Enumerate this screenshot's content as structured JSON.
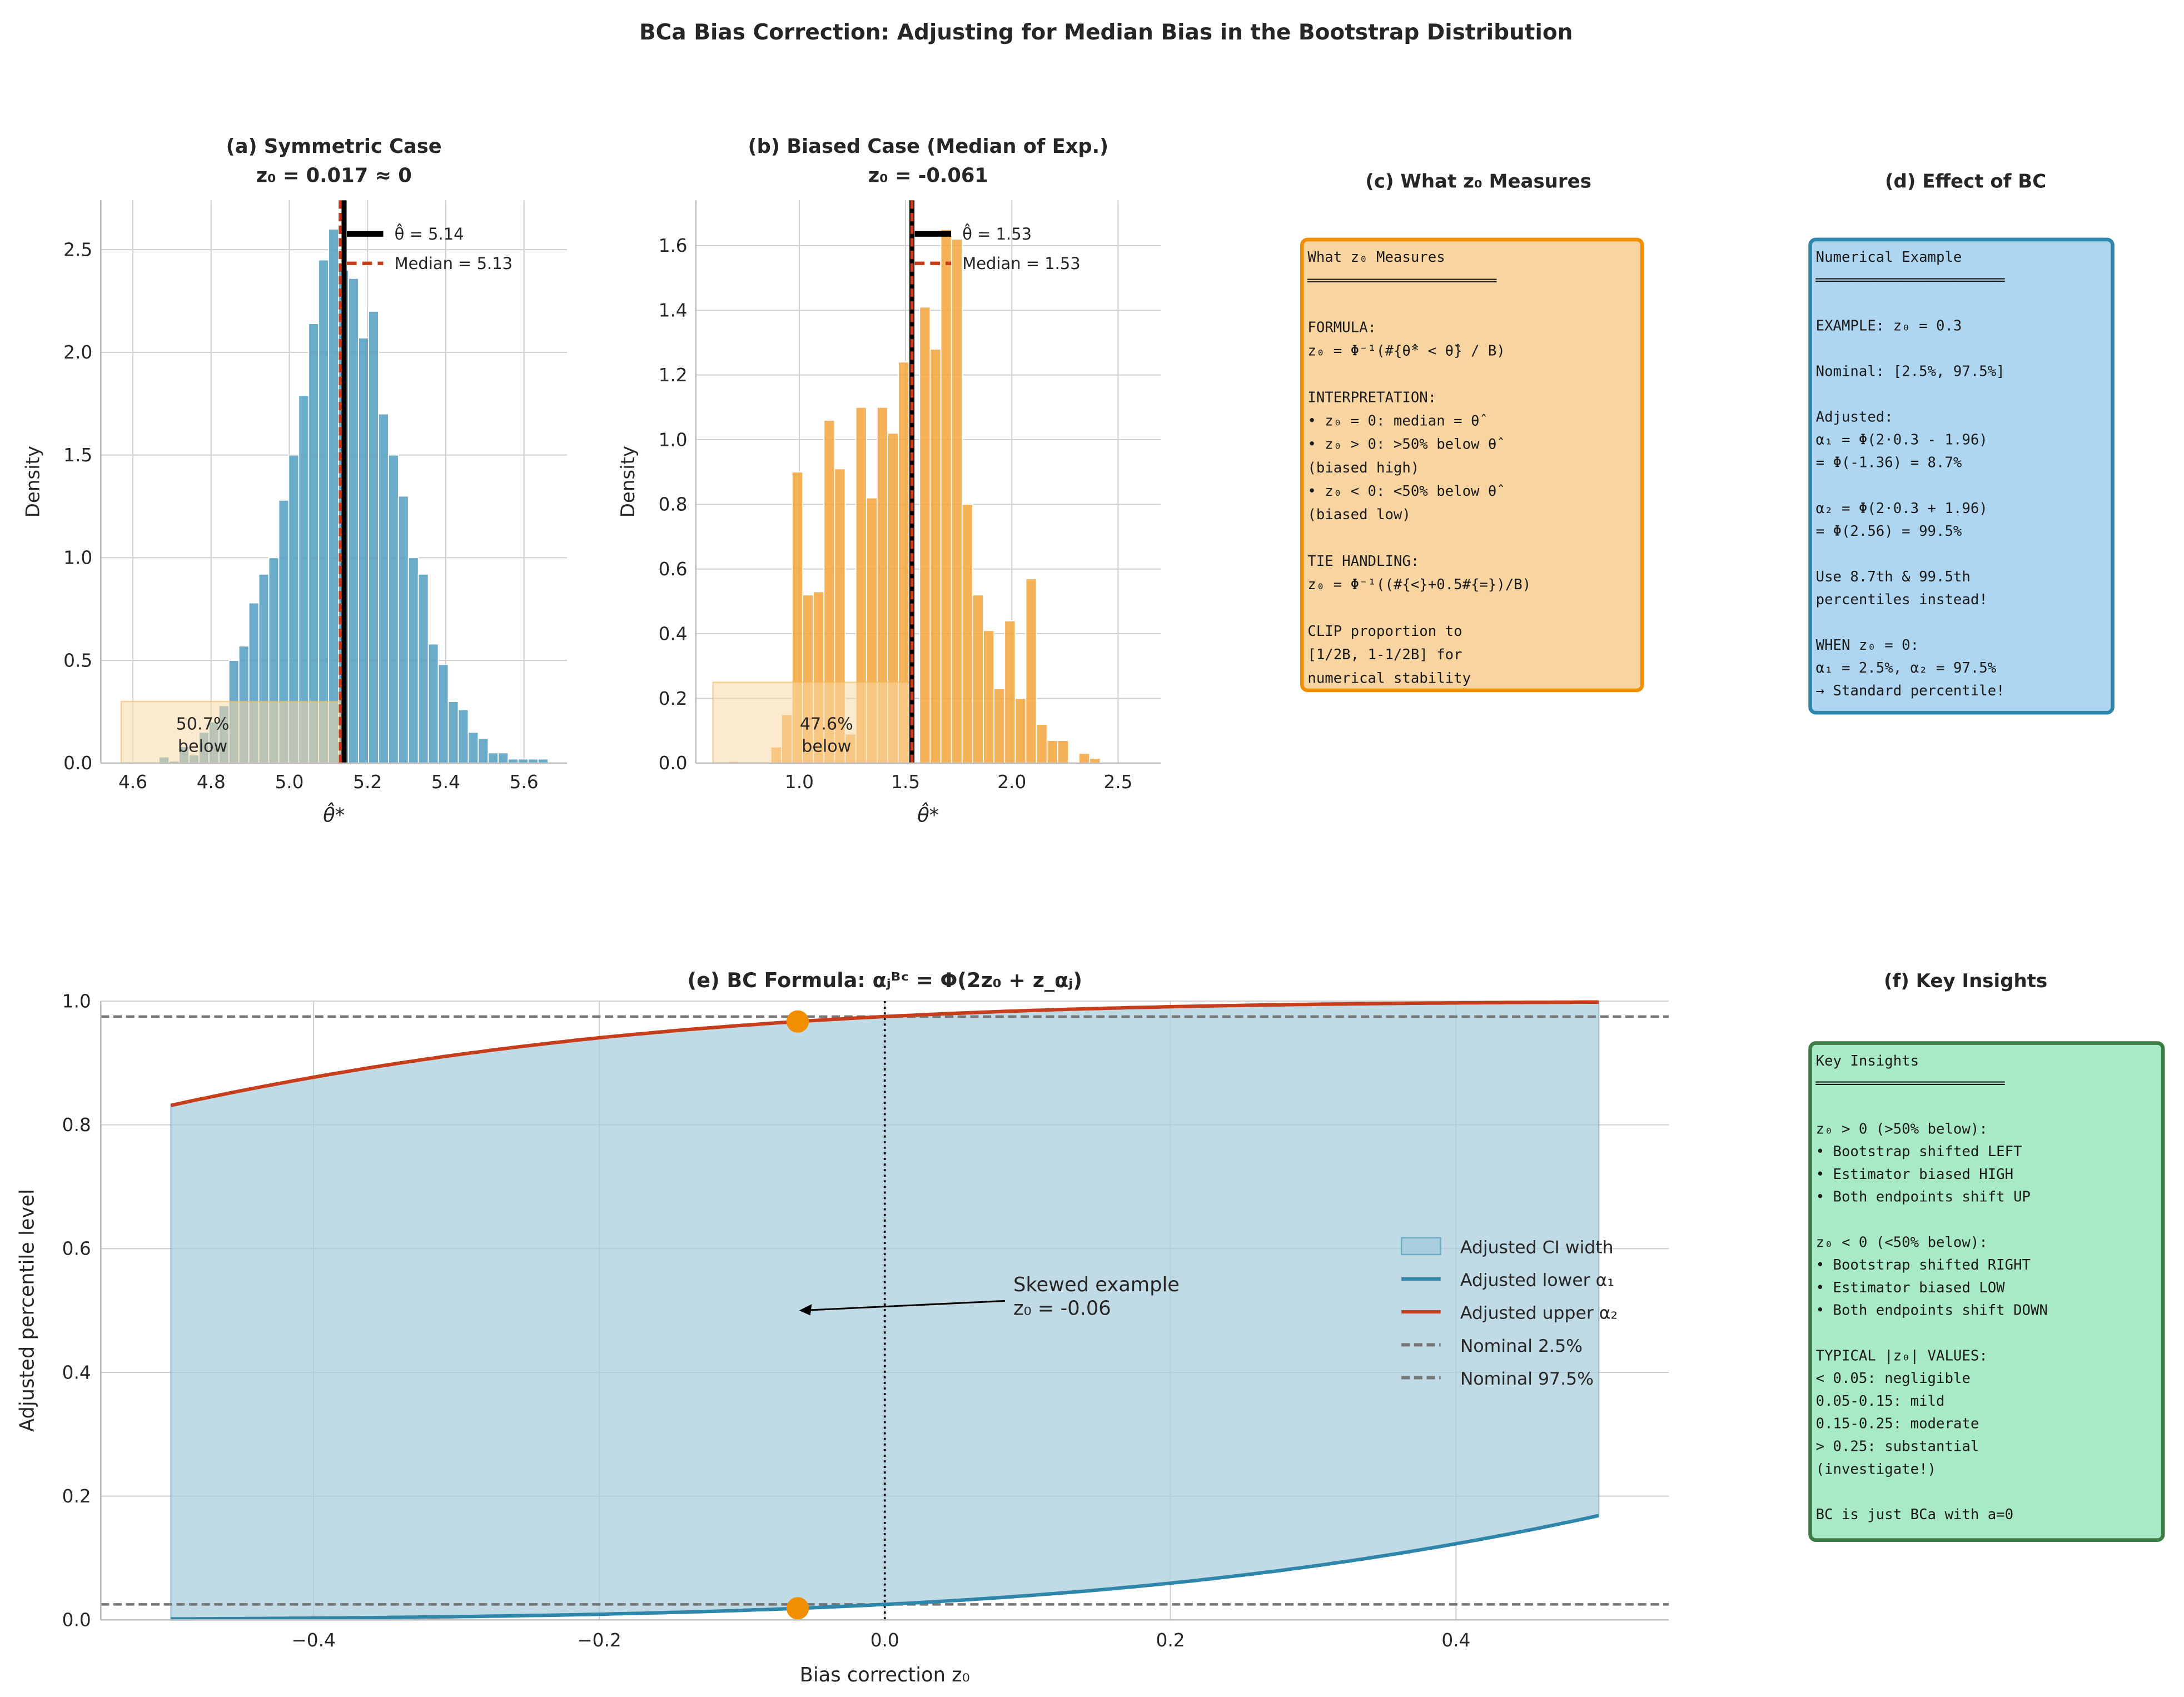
{
  "title": "BCa Bias Correction: Adjusting for Median Bias in the Bootstrap Distribution",
  "colors": {
    "blue": "#2e86ab",
    "hist_blue": "#5ba3c4",
    "orange": "#f18f01",
    "hist_orange": "#f5a53c",
    "red": "#c73e1d",
    "shade": "#f9d9a8",
    "fill_blue": "#a9cddd",
    "gray": "#777777"
  },
  "chart_data": [
    {
      "id": "a",
      "type": "bar",
      "title_line1": "(a) Symmetric Case",
      "title_line2": "z₀ = 0.017  ≈  0",
      "xlabel": "θ̂*",
      "ylabel": "Density",
      "xlim": [
        4.518,
        5.71
      ],
      "ylim": [
        0,
        2.74
      ],
      "xticks": [
        "4.6",
        "4.8",
        "5.0",
        "5.2",
        "5.4",
        "5.6"
      ],
      "yticks": [
        "0.0",
        "0.5",
        "1.0",
        "1.5",
        "2.0",
        "2.5"
      ],
      "bin_start": 4.565,
      "bin_width": 0.0255,
      "values": [
        0.005,
        0.005,
        0,
        0,
        0.03,
        0.01,
        0.08,
        0.04,
        0.15,
        0.2,
        0.28,
        0.5,
        0.57,
        0.78,
        0.92,
        1.0,
        1.28,
        1.5,
        1.79,
        2.14,
        2.45,
        2.6,
        2.4,
        2.36,
        2.07,
        2.2,
        1.7,
        1.5,
        1.3,
        1.0,
        0.92,
        0.58,
        0.48,
        0.3,
        0.26,
        0.15,
        0.12,
        0.05,
        0.05,
        0.02,
        0.02,
        0.02,
        0.02
      ],
      "theta_hat": 5.14,
      "median": 5.13,
      "legend": [
        "θ̂ = 5.14",
        "Median = 5.13"
      ],
      "shade_range": [
        4.57,
        5.13
      ],
      "shade_height": 0.3,
      "annotation": [
        "50.7%",
        "below"
      ]
    },
    {
      "id": "b",
      "type": "bar",
      "title_line1": "(b) Biased Case (Median of Exp.)",
      "title_line2": "z₀ = -0.061",
      "xlabel": "θ̂*",
      "ylabel": "Density",
      "xlim": [
        0.513,
        2.7
      ],
      "ylim": [
        0,
        1.74
      ],
      "xticks": [
        "1.0",
        "1.5",
        "2.0",
        "2.5"
      ],
      "yticks": [
        "0.0",
        "0.2",
        "0.4",
        "0.6",
        "0.8",
        "1.0",
        "1.2",
        "1.4",
        "1.6"
      ],
      "bin_start": 0.666,
      "bin_width": 0.05,
      "values": [
        0.005,
        0,
        0,
        0,
        0.05,
        0.15,
        0.9,
        0.52,
        0.53,
        1.06,
        0.91,
        0.09,
        1.1,
        0.82,
        1.1,
        1.02,
        1.24,
        0,
        1.41,
        1.28,
        1.65,
        1.62,
        0.8,
        0.52,
        0.41,
        0.23,
        0.44,
        0.2,
        0.57,
        0.12,
        0.07,
        0.07,
        0,
        0.03,
        0.015
      ],
      "theta_hat": 1.53,
      "median": 1.53,
      "legend": [
        "θ̂ = 1.53",
        "Median = 1.53"
      ],
      "shade_range": [
        0.594,
        1.53
      ],
      "shade_height": 0.25,
      "annotation": [
        "47.6%",
        "below"
      ]
    },
    {
      "id": "e",
      "type": "line",
      "title": "(e) BC Formula: αⱼᴮᶜ = Φ(2z₀ + z_αⱼ)",
      "xlabel": "Bias correction z₀",
      "ylabel": "Adjusted percentile level",
      "xlim": [
        -0.549,
        0.549
      ],
      "ylim": [
        0,
        1.0
      ],
      "xticks": [
        {
          "v": -0.4,
          "label": "−0.4"
        },
        {
          "v": -0.2,
          "label": "−0.2"
        },
        {
          "v": 0.0,
          "label": "0.0"
        },
        {
          "v": 0.2,
          "label": "0.2"
        },
        {
          "v": 0.4,
          "label": "0.4"
        }
      ],
      "yticks": [
        "0.0",
        "0.2",
        "0.4",
        "0.6",
        "0.8",
        "1.0"
      ],
      "z0_range": [
        -0.5,
        0.5
      ],
      "z_alpha": 1.96,
      "series": [
        {
          "name": "Adjusted lower α₁",
          "formula": "Φ(2z₀ − 1.96)"
        },
        {
          "name": "Adjusted upper α₂",
          "formula": "Φ(2z₀ + 1.96)"
        }
      ],
      "fill_name": "Adjusted CI width",
      "nominal": [
        {
          "name": "Nominal 2.5%",
          "value": 0.025
        },
        {
          "name": "Nominal 97.5%",
          "value": 0.975
        }
      ],
      "example_z0": -0.061,
      "example_points": [
        0.0187,
        0.967
      ],
      "annotation": {
        "lines": [
          "Skewed example",
          "z₀ = -0.06"
        ],
        "arrow_to": [
          -0.06,
          0.5
        ],
        "text_at": [
          0.09,
          0.52
        ]
      },
      "legend_position": "center-right",
      "grid": true
    }
  ],
  "panel_c": {
    "title": "(c) What z₀ Measures",
    "lines": [
      "What z₀ Measures",
      "══════════════════════",
      "",
      "FORMULA:",
      "z₀ = Φ⁻¹(#{θ̂* < θ̂} / B)",
      "",
      "INTERPRETATION:",
      "• z₀ = 0:  median = θ̂",
      "• z₀ > 0:  >50% below θ̂",
      "           (biased high)",
      "• z₀ < 0:  <50% below θ̂",
      "           (biased low)",
      "",
      "TIE HANDLING:",
      "z₀ = Φ⁻¹((#{<}+0.5#{=})/B)",
      "",
      "CLIP proportion to",
      "[1/2B, 1-1/2B] for",
      "numerical stability"
    ]
  },
  "panel_d": {
    "title": "(d) Effect of BC",
    "lines": [
      "Numerical Example",
      "══════════════════════",
      "",
      "EXAMPLE: z₀ = 0.3",
      "",
      "Nominal: [2.5%, 97.5%]",
      "",
      "Adjusted:",
      "α₁ = Φ(2·0.3 - 1.96)",
      "   = Φ(-1.36) = 8.7%",
      "",
      "α₂ = Φ(2·0.3 + 1.96)",
      "   = Φ(2.56) = 99.5%",
      "",
      "Use 8.7th & 99.5th",
      "percentiles instead!",
      "",
      "WHEN z₀ = 0:",
      "α₁ = 2.5%, α₂ = 97.5%",
      "→ Standard percentile!"
    ]
  },
  "panel_f": {
    "title": "(f) Key Insights",
    "lines": [
      "Key Insights",
      "══════════════════════",
      "",
      "z₀ > 0 (>50% below):",
      "• Bootstrap shifted LEFT",
      "• Estimator biased HIGH",
      "• Both endpoints shift UP",
      "",
      "z₀ < 0 (<50% below):",
      "• Bootstrap shifted RIGHT",
      "• Estimator biased LOW",
      "• Both endpoints shift DOWN",
      "",
      "TYPICAL |z₀| VALUES:",
      "< 0.05: negligible",
      "0.05-0.15: mild",
      "0.15-0.25: moderate",
      "> 0.25: substantial",
      "         (investigate!)",
      "",
      "BC is just BCa with a=0"
    ]
  }
}
